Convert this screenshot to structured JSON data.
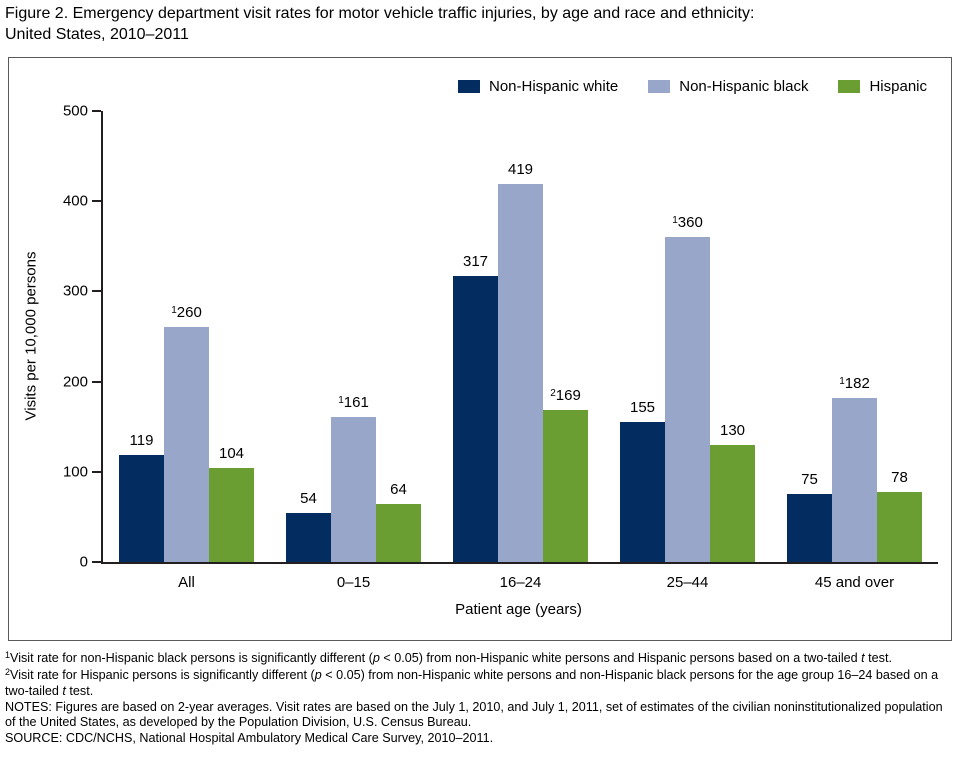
{
  "chart_data": {
    "type": "bar",
    "title": "Figure 2. Emergency department visit rates for motor vehicle traffic injuries, by age and race and ethnicity:\nUnited States, 2010–2011",
    "xlabel": "Patient age (years)",
    "ylabel": "Visits per 10,000 persons",
    "ylim": [
      0,
      500
    ],
    "yticks": [
      0,
      100,
      200,
      300,
      400,
      500
    ],
    "grid": false,
    "legend_position": "top-right",
    "categories": [
      "All",
      "0–15",
      "16–24",
      "25–44",
      "45 and over"
    ],
    "series": [
      {
        "name": "Non-Hispanic white",
        "color": "#032d61",
        "points": [
          {
            "value": 119,
            "label": "119",
            "sup": ""
          },
          {
            "value": 54,
            "label": "54",
            "sup": ""
          },
          {
            "value": 317,
            "label": "317",
            "sup": ""
          },
          {
            "value": 155,
            "label": "155",
            "sup": ""
          },
          {
            "value": 75,
            "label": "75",
            "sup": ""
          }
        ]
      },
      {
        "name": "Non-Hispanic black",
        "color": "#98a6c9",
        "points": [
          {
            "value": 260,
            "label": "260",
            "sup": "1"
          },
          {
            "value": 161,
            "label": "161",
            "sup": "1"
          },
          {
            "value": 419,
            "label": "419",
            "sup": ""
          },
          {
            "value": 360,
            "label": "360",
            "sup": "1"
          },
          {
            "value": 182,
            "label": "182",
            "sup": "1"
          }
        ]
      },
      {
        "name": "Hispanic",
        "color": "#6a9e32",
        "points": [
          {
            "value": 104,
            "label": "104",
            "sup": ""
          },
          {
            "value": 64,
            "label": "64",
            "sup": ""
          },
          {
            "value": 169,
            "label": "169",
            "sup": "2"
          },
          {
            "value": 130,
            "label": "130",
            "sup": ""
          },
          {
            "value": 78,
            "label": "78",
            "sup": ""
          }
        ]
      }
    ]
  },
  "footnotes": [
    [
      {
        "t": "1",
        "s": "sup"
      },
      {
        "t": "Visit rate for non-Hispanic black persons is significantly different (",
        "s": ""
      },
      {
        "t": "p",
        "s": "i"
      },
      {
        "t": " < 0.05) from non-Hispanic white persons and Hispanic persons based on a two-tailed ",
        "s": ""
      },
      {
        "t": "t",
        "s": "i"
      },
      {
        "t": " test.",
        "s": ""
      }
    ],
    [
      {
        "t": "2",
        "s": "sup"
      },
      {
        "t": "Visit rate for Hispanic persons is significantly different (",
        "s": ""
      },
      {
        "t": "p",
        "s": "i"
      },
      {
        "t": " < 0.05) from non-Hispanic white persons and non-Hispanic black persons for the age group 16–24 based on a two-tailed ",
        "s": ""
      },
      {
        "t": "t",
        "s": "i"
      },
      {
        "t": " test.",
        "s": ""
      }
    ],
    [
      {
        "t": "NOTES: Figures are based on 2-year averages. Visit rates are based on the July 1, 2010, and July 1, 2011, set of estimates of the civilian noninstitutionalized population of the United States, as developed by the Population Division, U.S. Census Bureau.",
        "s": ""
      }
    ],
    [
      {
        "t": "SOURCE: CDC/NCHS, National Hospital Ambulatory Medical Care Survey, 2010–2011.",
        "s": ""
      }
    ]
  ],
  "colors": {
    "non_hispanic_white": "#032d61",
    "non_hispanic_black": "#98a6c9",
    "hispanic": "#6a9e32",
    "axis": "#231f20",
    "frame_border": "#595a5c"
  }
}
